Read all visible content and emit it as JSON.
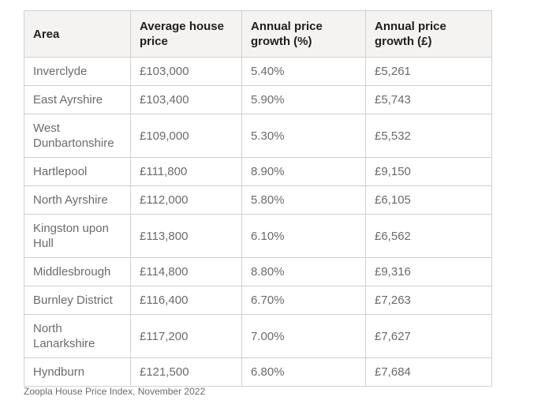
{
  "chart_data": {
    "type": "table",
    "title": "",
    "columns": [
      "Area",
      "Average house price",
      "Annual price growth (%)",
      "Annual price growth (£)"
    ],
    "column_keys": [
      "area",
      "avg_price",
      "growth_pct",
      "growth_gbp"
    ],
    "rows": [
      {
        "area": "Inverclyde",
        "avg_price": "£103,000",
        "growth_pct": "5.40%",
        "growth_gbp": "£5,261"
      },
      {
        "area": "East Ayrshire",
        "avg_price": "£103,400",
        "growth_pct": "5.90%",
        "growth_gbp": "£5,743"
      },
      {
        "area": "West Dunbartonshire",
        "avg_price": "£109,000",
        "growth_pct": "5.30%",
        "growth_gbp": "£5,532"
      },
      {
        "area": "Hartlepool",
        "avg_price": "£111,800",
        "growth_pct": "8.90%",
        "growth_gbp": "£9,150"
      },
      {
        "area": "North Ayrshire",
        "avg_price": "£112,000",
        "growth_pct": "5.80%",
        "growth_gbp": "£6,105"
      },
      {
        "area": "Kingston upon Hull",
        "avg_price": "£113,800",
        "growth_pct": "6.10%",
        "growth_gbp": "£6,562"
      },
      {
        "area": "Middlesbrough",
        "avg_price": "£114,800",
        "growth_pct": "8.80%",
        "growth_gbp": "£9,316"
      },
      {
        "area": "Burnley District",
        "avg_price": "£116,400",
        "growth_pct": "6.70%",
        "growth_gbp": "£7,263"
      },
      {
        "area": "North Lanarkshire",
        "avg_price": "£117,200",
        "growth_pct": "7.00%",
        "growth_gbp": "£7,627"
      },
      {
        "area": "Hyndburn",
        "avg_price": "£121,500",
        "growth_pct": "6.80%",
        "growth_gbp": "£7,684"
      }
    ],
    "source": "Zoopla House Price Index, November 2022"
  },
  "colors": {
    "bg": "#ffffff",
    "header-bg": "#f5f3f1",
    "border": "#d2d0ce",
    "header-text": "#1f1e1e",
    "body-text": "#6b6a70"
  }
}
